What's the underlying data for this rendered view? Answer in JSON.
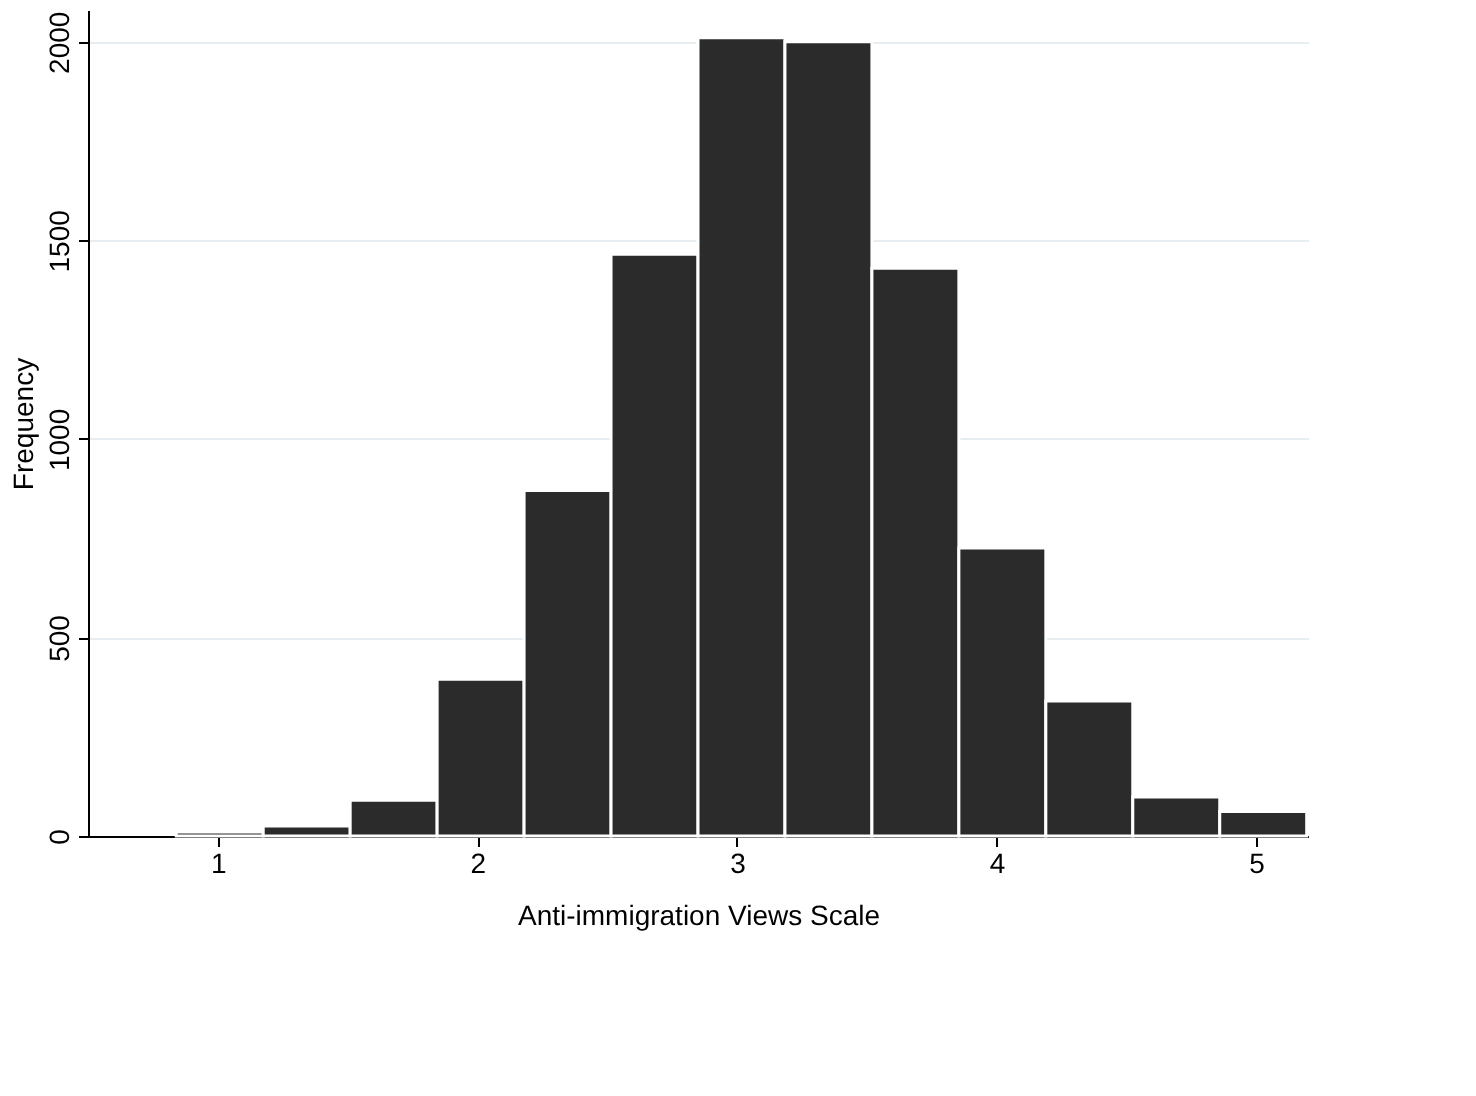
{
  "chart_data": {
    "type": "histogram",
    "xlabel": "Anti-immigration Views Scale",
    "ylabel": "Frequency",
    "bins": [
      0.84,
      1.175,
      1.51,
      1.845,
      2.18,
      2.515,
      2.85,
      3.185,
      3.52,
      3.855,
      4.19,
      4.525,
      4.86,
      5.195
    ],
    "values": [
      10,
      25,
      90,
      395,
      870,
      1465,
      2010,
      2000,
      1430,
      725,
      340,
      98,
      62
    ],
    "color": "#2b2b2b",
    "xlim": [
      0.5,
      5.2
    ],
    "xticks": [
      1,
      2,
      3,
      4,
      5
    ],
    "ylim": [
      0,
      2080
    ],
    "yticks": [
      0,
      500,
      1000,
      1500,
      2000
    ],
    "grid": "y"
  }
}
